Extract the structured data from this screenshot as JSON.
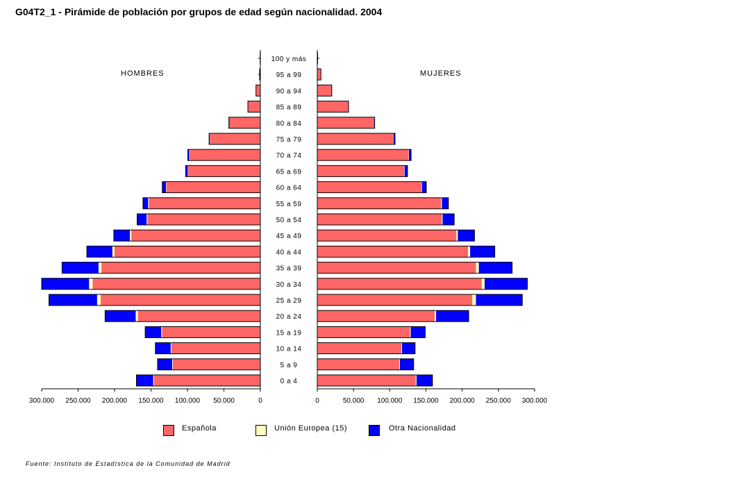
{
  "title": "G04T2_1 - Pirámide de población por grupos de edad según nacionalidad.  2004",
  "source": "Fuente: Instituto de Estadística de la Comunidad de Madrid",
  "colors": {
    "espanola": "#ff6666",
    "ue15": "#ffffc0",
    "otra": "#0000ff"
  },
  "chart_data": {
    "type": "bar",
    "subtype": "population-pyramid-stacked",
    "panels": {
      "left": "HOMBRES",
      "right": "MUJERES"
    },
    "categories": [
      "0 a 4",
      "5 a 9",
      "10 a 14",
      "15 a 19",
      "20 a 24",
      "25 a 29",
      "30 a 34",
      "35 a 39",
      "40 a 44",
      "45 a 49",
      "50 a 54",
      "55 a 59",
      "60 a 64",
      "65 a 69",
      "70 a 74",
      "75 a 79",
      "80 a 84",
      "85 a 89",
      "90 a 94",
      "95 a 99",
      "100 y más"
    ],
    "xlim": [
      0,
      300000
    ],
    "ticks": [
      "0",
      "50.000",
      "100.000",
      "150.000",
      "200.000",
      "250.000",
      "300.000"
    ],
    "tick_values": [
      0,
      50000,
      100000,
      150000,
      200000,
      250000,
      300000
    ],
    "legend": [
      "Española",
      "Unión Europea (15)",
      "Otra Nacionalidad"
    ],
    "hombres": {
      "Española": [
        146000,
        120000,
        122000,
        135000,
        168000,
        219000,
        230000,
        218000,
        200000,
        177000,
        155000,
        153000,
        129000,
        99000,
        97000,
        69000,
        42000,
        17000,
        6000,
        1000,
        300
      ],
      "Unión Europea (15)": [
        1000,
        1000,
        1000,
        1000,
        3000,
        5000,
        5000,
        4000,
        3000,
        2000,
        1000,
        1000,
        500,
        500,
        500,
        300,
        200,
        100,
        0,
        0,
        0
      ],
      "Otra Nacionalidad": [
        23000,
        20000,
        21000,
        22000,
        42000,
        66000,
        65000,
        50000,
        35000,
        22000,
        13000,
        7000,
        5000,
        3000,
        2000,
        1000,
        1000,
        0,
        0,
        0,
        0
      ]
    },
    "mujeres": {
      "Española": [
        136000,
        113000,
        116000,
        128000,
        162000,
        214000,
        227000,
        219000,
        208000,
        192000,
        172000,
        171000,
        144000,
        120000,
        126000,
        105000,
        78000,
        43000,
        20000,
        5000,
        500
      ],
      "Unión Europea (15)": [
        1000,
        1000,
        1000,
        1000,
        2000,
        5000,
        4000,
        4000,
        3000,
        2000,
        1000,
        1000,
        500,
        500,
        500,
        300,
        200,
        100,
        0,
        0,
        0
      ],
      "Otra Nacionalidad": [
        22000,
        19000,
        18000,
        20000,
        45000,
        64000,
        59000,
        46000,
        34000,
        23000,
        16000,
        9000,
        6000,
        4000,
        3000,
        2000,
        1000,
        0,
        0,
        0,
        0
      ]
    }
  }
}
